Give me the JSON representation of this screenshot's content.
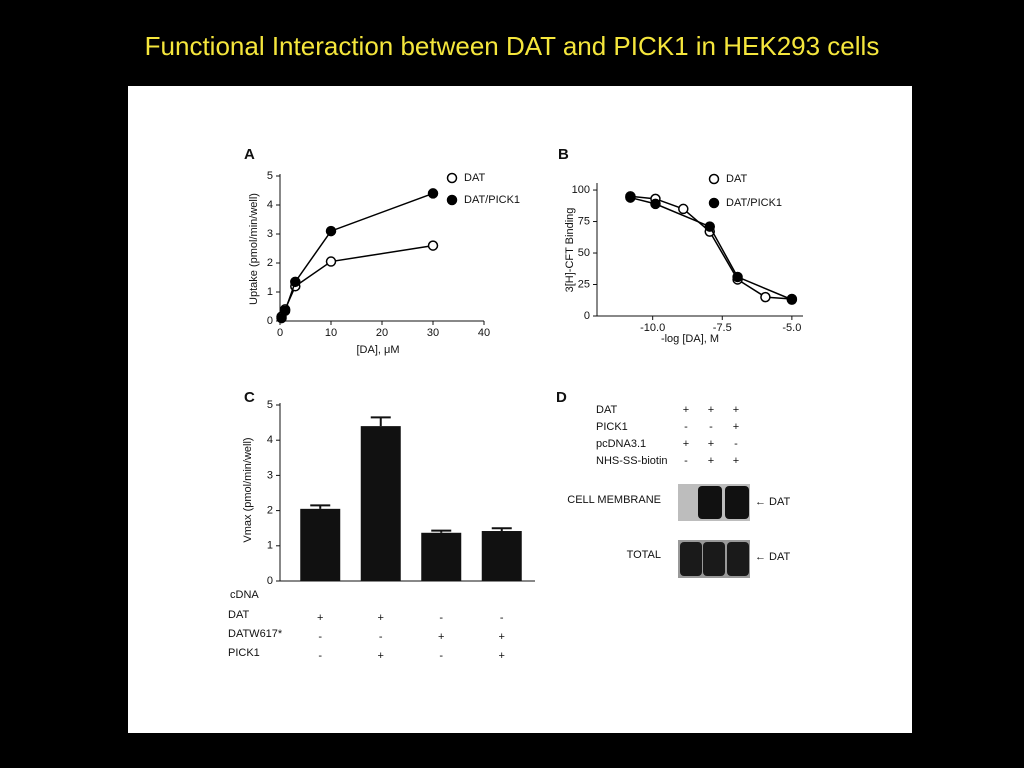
{
  "title": "Functional Interaction between DAT and PICK1 in HEK293 cells",
  "chart_data": [
    {
      "type": "line",
      "panel": "A",
      "xlabel": "[DA], μM",
      "ylabel": "Uptake (pmol/min/well)",
      "x": [
        0.3,
        1,
        3,
        10,
        30
      ],
      "xlim": [
        0,
        40
      ],
      "xticks": [
        0,
        10,
        20,
        30,
        40
      ],
      "ylim": [
        0,
        5
      ],
      "yticks": [
        0,
        1,
        2,
        3,
        4,
        5
      ],
      "color": "#000000",
      "series": [
        {
          "name": "DAT",
          "marker": "open",
          "values": [
            0.15,
            0.4,
            1.2,
            2.05,
            2.6
          ]
        },
        {
          "name": "DAT/PICK1",
          "marker": "filled",
          "values": [
            0.1,
            0.35,
            1.35,
            3.1,
            4.4
          ]
        }
      ]
    },
    {
      "type": "line",
      "panel": "B",
      "xlabel": "-log [DA], M",
      "ylabel": "3[H]-CFT Binding",
      "xlim": [
        -12,
        -4.6
      ],
      "xticks": [
        {
          "value": -10,
          "label": "-10.0"
        },
        {
          "value": -7.5,
          "label": "-7.5"
        },
        {
          "value": -5,
          "label": "-5.0"
        }
      ],
      "ylim": [
        0,
        104
      ],
      "yticks": [
        0,
        25,
        50,
        75,
        100
      ],
      "color": "#000000",
      "series": [
        {
          "name": "DAT",
          "marker": "open",
          "x": [
            -10.8,
            -9.9,
            -8.9,
            -7.95,
            -6.95,
            -5.95,
            -5
          ],
          "values": [
            95,
            93,
            85,
            67,
            29,
            15,
            13.5
          ]
        },
        {
          "name": "DAT/PICK1",
          "marker": "filled",
          "x": [
            -10.8,
            -9.9,
            -7.95,
            -6.95,
            -5
          ],
          "values": [
            94,
            89,
            71,
            31,
            13
          ]
        }
      ]
    },
    {
      "type": "bar",
      "panel": "C",
      "ylabel": "Vmax (pmol/min/well)",
      "categories": [
        null,
        null,
        null,
        null
      ],
      "values": [
        2.05,
        4.4,
        1.37,
        1.42
      ],
      "errors": [
        0.1,
        0.25,
        0.06,
        0.08
      ],
      "ylim": [
        0,
        5
      ],
      "yticks": [
        0,
        1,
        2,
        3,
        4,
        5
      ],
      "color": "#111111",
      "table": {
        "title": "cDNA",
        "rows": [
          {
            "label": "DAT",
            "cells": [
              "+",
              "+",
              "-",
              "-"
            ]
          },
          {
            "label": "DATW617*",
            "cells": [
              "-",
              "-",
              "+",
              "+"
            ]
          },
          {
            "label": "PICK1",
            "cells": [
              "-",
              "+",
              "-",
              "+"
            ]
          }
        ]
      }
    }
  ],
  "blot": {
    "panel": "D",
    "conditions": [
      {
        "label": "DAT",
        "cells": [
          "+",
          "+",
          "+"
        ]
      },
      {
        "label": "PICK1",
        "cells": [
          "-",
          "-",
          "+"
        ]
      },
      {
        "label": "pcDNA3.1",
        "cells": [
          "+",
          "+",
          "-"
        ]
      },
      {
        "label": "NHS-SS-biotin",
        "cells": [
          "-",
          "+",
          "+"
        ]
      }
    ],
    "rows": [
      {
        "label": "CELL MEMBRANE",
        "band": "← DAT"
      },
      {
        "label": "TOTAL",
        "band": "← DAT"
      }
    ]
  }
}
